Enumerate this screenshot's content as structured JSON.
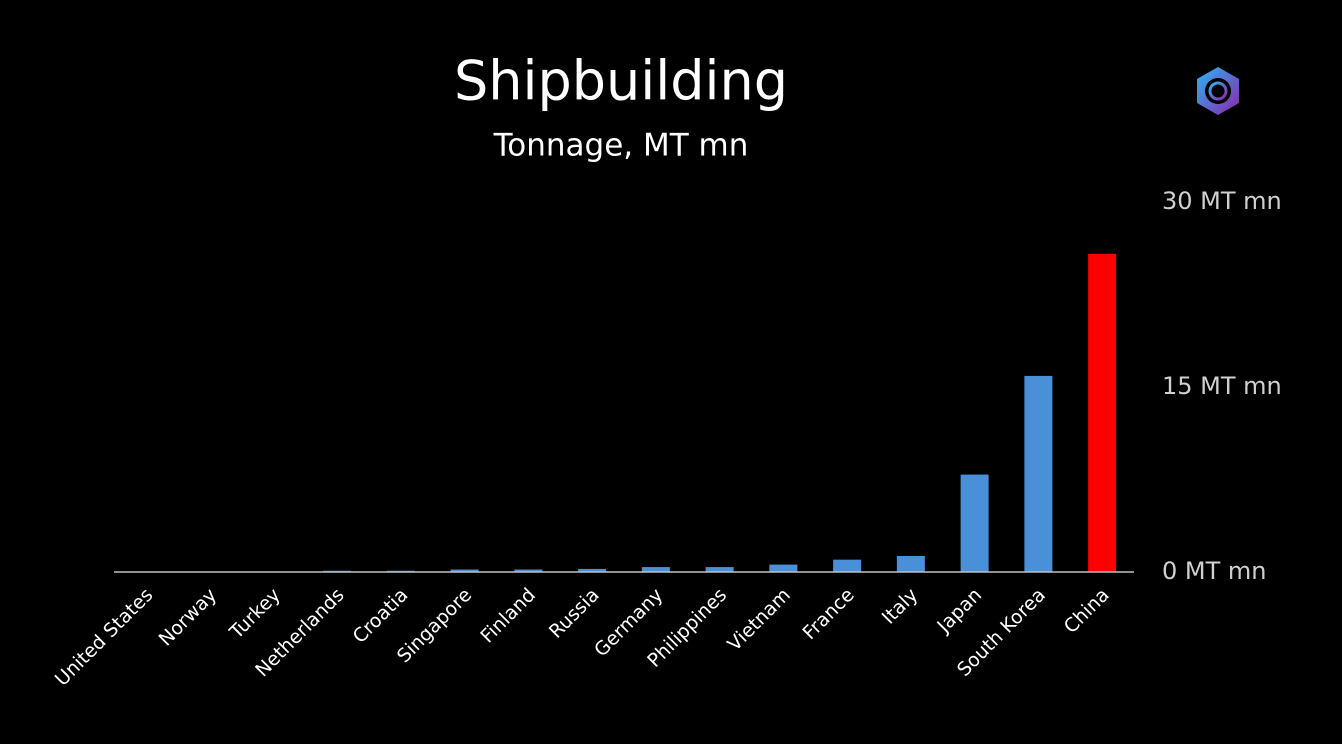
{
  "chart_data": {
    "type": "bar",
    "title": "Shipbuilding",
    "subtitle": "Tonnage, MT mn",
    "categories": [
      "United States",
      "Norway",
      "Turkey",
      "Netherlands",
      "Croatia",
      "Singapore",
      "Finland",
      "Russia",
      "Germany",
      "Philippines",
      "Vietnam",
      "France",
      "Italy",
      "Japan",
      "South Korea",
      "China"
    ],
    "values": [
      0.01,
      0.01,
      0.02,
      0.1,
      0.1,
      0.2,
      0.2,
      0.25,
      0.4,
      0.4,
      0.6,
      1.0,
      1.3,
      7.9,
      15.9,
      25.8
    ],
    "colors": [
      "#4a90d9",
      "#4a90d9",
      "#4a90d9",
      "#4a90d9",
      "#4a90d9",
      "#4a90d9",
      "#4a90d9",
      "#4a90d9",
      "#4a90d9",
      "#4a90d9",
      "#4a90d9",
      "#4a90d9",
      "#4a90d9",
      "#4a90d9",
      "#4a90d9",
      "#ff0000"
    ],
    "ylim": [
      0,
      30
    ],
    "yticks": [
      {
        "value": 0,
        "label": "0 MT mn"
      },
      {
        "value": 15,
        "label": "15 MT mn"
      },
      {
        "value": 30,
        "label": "30 MT mn"
      }
    ],
    "grid": false
  }
}
